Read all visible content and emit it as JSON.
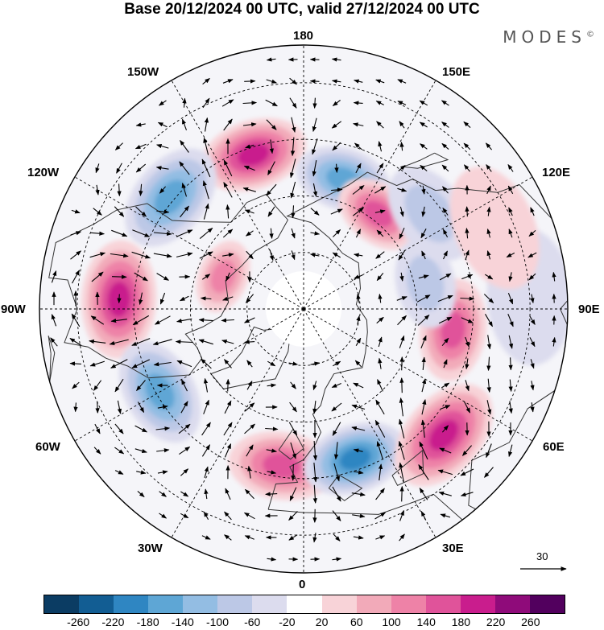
{
  "title": "Base 20/12/2024 00 UTC, valid 27/12/2024 00 UTC",
  "brand": "MODES",
  "brand_mark": "©",
  "longitude_labels": {
    "lon_180": "180",
    "lon_150e": "150E",
    "lon_120e": "120E",
    "lon_90e": "90E",
    "lon_60e": "60E",
    "lon_30e": "30E",
    "lon_0": "0",
    "lon_30w": "30W",
    "lon_60w": "60W",
    "lon_90w": "90W",
    "lon_120w": "120W",
    "lon_150w": "150W"
  },
  "vector_reference": "30",
  "colorbar": {
    "colors": [
      "#0b3c63",
      "#125d93",
      "#2f86c2",
      "#5ea6d5",
      "#93bde3",
      "#bcc8e6",
      "#dcdcee",
      "#ffffff",
      "#f8d3d8",
      "#f2aab9",
      "#ee82a7",
      "#e0539a",
      "#c91d8d",
      "#8f0b7a",
      "#52005e"
    ],
    "tick_labels": [
      "-260",
      "-220",
      "-180",
      "-140",
      "-100",
      "-60",
      "-20",
      "20",
      "60",
      "100",
      "140",
      "180",
      "220",
      "260"
    ]
  },
  "colors": {
    "land_outline": "#333333",
    "gridline": "#000000",
    "pole_cap": "#ffffff"
  },
  "anomaly_centers": [
    {
      "lon": -162,
      "lat": 47,
      "value": 190
    },
    {
      "lon": 163,
      "lat": 54,
      "value": -160
    },
    {
      "lon": 142,
      "lat": 58,
      "value": 150
    },
    {
      "lon": -130,
      "lat": 44,
      "value": -150
    },
    {
      "lon": -112,
      "lat": 67,
      "value": 120
    },
    {
      "lon": -93,
      "lat": 41,
      "value": 210
    },
    {
      "lon": -60,
      "lat": 46,
      "value": -170
    },
    {
      "lon": -8,
      "lat": 48,
      "value": 170
    },
    {
      "lon": 19,
      "lat": 48,
      "value": -210
    },
    {
      "lon": 48,
      "lat": 40,
      "value": 200
    },
    {
      "lon": 82,
      "lat": 50,
      "value": 170
    },
    {
      "lon": 102,
      "lat": 57,
      "value": -90
    },
    {
      "lon": 127,
      "lat": 48,
      "value": -70
    },
    {
      "lon": 93,
      "lat": 30,
      "value": -50
    },
    {
      "lon": 113,
      "lat": 35,
      "value": 50
    }
  ]
}
